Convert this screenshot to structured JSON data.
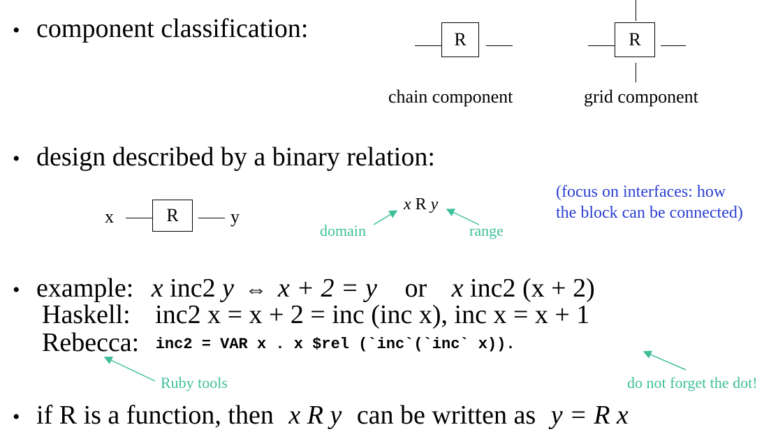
{
  "bullets": {
    "symbol": "•",
    "component_classification": "component classification:",
    "design_relation": "design described by a binary relation:",
    "function_text": "if R is a function, then"
  },
  "diagram": {
    "chain_label": "chain component",
    "grid_label": "grid component",
    "box_label": "R",
    "x_label": "x",
    "y_label": "y"
  },
  "relation": {
    "x": "x",
    "r": "R",
    "y": "y",
    "domain": "domain",
    "range": "range",
    "focus_line1": "(focus on interfaces: how",
    "focus_line2": "the block can be connected)"
  },
  "example": {
    "label": "example:",
    "x1": "x",
    "inc2": "inc2",
    "y1": "y",
    "iff": "⇔",
    "expr1": "x + 2 = y",
    "or": "or",
    "x2": "x",
    "inc2b": "inc2",
    "expr2": "(x + 2)"
  },
  "haskell": {
    "label": "Haskell:",
    "code": "inc2 x  =  x + 2  =  inc (inc x),  inc x = x + 1"
  },
  "rebecca": {
    "label": "Rebecca:",
    "code": "inc2 = VAR x . x $rel (`inc`(`inc` x))."
  },
  "annotations": {
    "ruby_tools": "Ruby tools",
    "dot_note": "do not forget the dot!"
  },
  "last_bullet": {
    "xry": "x R y",
    "middle": "can be written as",
    "result": "y = R x"
  },
  "colors": {
    "teal": "#3fbf9a",
    "blue": "#2b3fd1"
  }
}
